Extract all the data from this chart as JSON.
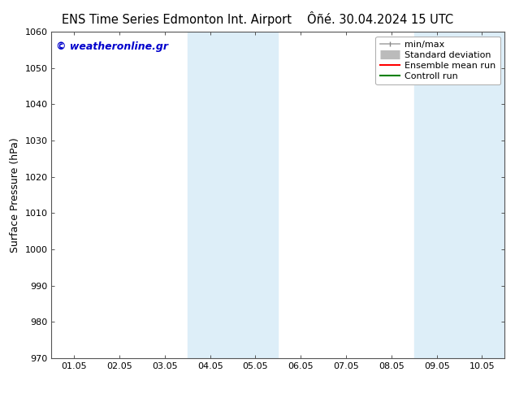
{
  "title_left": "ENS Time Series Edmonton Int. Airport",
  "title_right": "Ôñé. 30.04.2024 15 UTC",
  "ylabel": "Surface Pressure (hPa)",
  "ylim": [
    970,
    1060
  ],
  "yticks": [
    970,
    980,
    990,
    1000,
    1010,
    1020,
    1030,
    1040,
    1050,
    1060
  ],
  "x_labels": [
    "01.05",
    "02.05",
    "03.05",
    "04.05",
    "05.05",
    "06.05",
    "07.05",
    "08.05",
    "09.05",
    "10.05"
  ],
  "x_values": [
    1,
    2,
    3,
    4,
    5,
    6,
    7,
    8,
    9,
    10
  ],
  "xlim": [
    0.5,
    10.5
  ],
  "shaded_bands": [
    {
      "x_start": 3.5,
      "x_end": 5.5,
      "color": "#ddeef8"
    },
    {
      "x_start": 8.5,
      "x_end": 10.5,
      "color": "#ddeef8"
    }
  ],
  "watermark_text": "© weatheronline.gr",
  "watermark_color": "#0000cc",
  "bg_color": "#ffffff",
  "title_fontsize": 10.5,
  "tick_label_fontsize": 8,
  "ylabel_fontsize": 9,
  "legend_fontsize": 8,
  "watermark_fontsize": 9
}
